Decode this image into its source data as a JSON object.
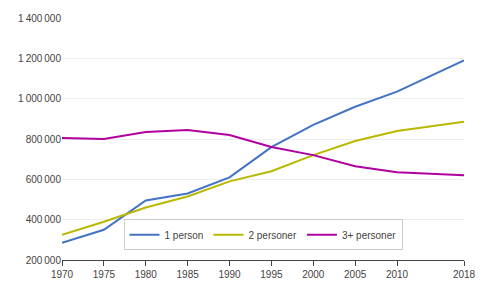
{
  "chart_data": {
    "type": "line",
    "x": [
      1970,
      1975,
      1980,
      1985,
      1990,
      1995,
      2000,
      2005,
      2010,
      2018
    ],
    "series": [
      {
        "name": "1 person",
        "color": "#4472c4",
        "values": [
          285000,
          350000,
          495000,
          530000,
          610000,
          760000,
          870000,
          960000,
          1035000,
          1190000
        ]
      },
      {
        "name": "2 personer",
        "color": "#b8b800",
        "values": [
          325000,
          390000,
          460000,
          515000,
          590000,
          640000,
          720000,
          790000,
          840000,
          885000
        ]
      },
      {
        "name": "3+ personer",
        "color": "#b000a0",
        "values": [
          805000,
          800000,
          835000,
          845000,
          820000,
          760000,
          720000,
          665000,
          635000,
          620000
        ]
      }
    ],
    "xlim": [
      1970,
      2018
    ],
    "xticks": [
      1970,
      1975,
      1980,
      1985,
      1990,
      1995,
      2000,
      2005,
      2010,
      2018
    ],
    "ylim": [
      200000,
      1400000
    ],
    "yticks": [
      {
        "value": 200000,
        "label": "200 000"
      },
      {
        "value": 400000,
        "label": "400 000"
      },
      {
        "value": 600000,
        "label": "600 000"
      },
      {
        "value": 800000,
        "label": "800 000"
      },
      {
        "value": 1000000,
        "label": "1 000 000"
      },
      {
        "value": 1200000,
        "label": "1 200 000"
      },
      {
        "value": 1400000,
        "label": "1 400 000"
      }
    ],
    "grid": "y",
    "legend": "lower center"
  }
}
